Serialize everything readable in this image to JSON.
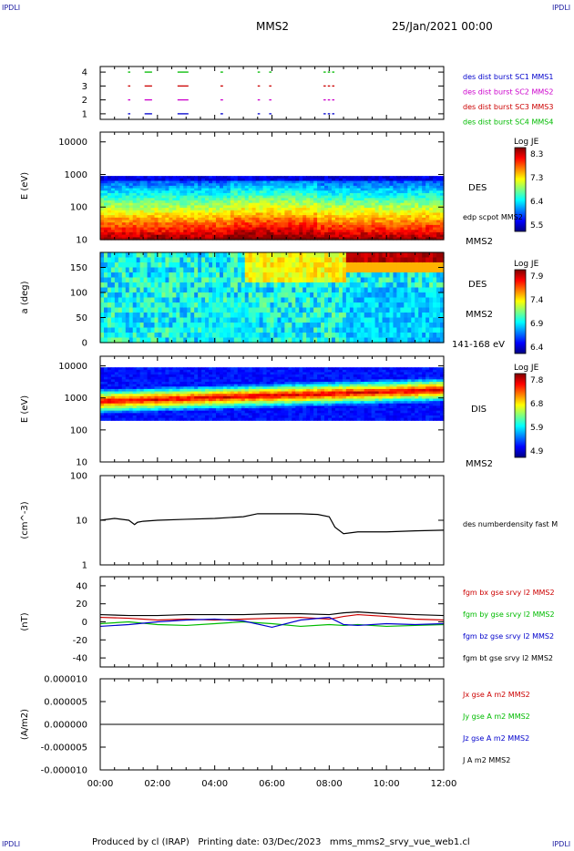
{
  "header": {
    "corner_tl": "IPDLI",
    "corner_tr": "IPDLI",
    "corner_bl": "IPDLI",
    "corner_br": "IPDLI",
    "mission": "MMS2",
    "date": "25/Jan/2021 00:00"
  },
  "footer": {
    "produced_by": "Produced by cl (IRAP)",
    "printing_date": "Printing date: 03/Dec/2023",
    "product": "mms_mms2_srvy_vue_web1.cl"
  },
  "colors": {
    "blue": "#0000cc",
    "magenta": "#cc00cc",
    "red": "#cc0000",
    "green": "#00bb00",
    "black": "#000000",
    "jet_low": "#0000a0",
    "jet_high": "#a00000"
  },
  "chart_data": [
    {
      "id": "burst",
      "type": "scatter",
      "ylim": [
        0.6,
        4.4
      ],
      "yticks": [
        "1",
        "2",
        "3",
        "4"
      ],
      "series": [
        {
          "name": "des dist burst SC1 MMS1",
          "y": 1,
          "color": "#0000cc"
        },
        {
          "name": "des dist burst SC2 MMS2",
          "y": 2,
          "color": "#cc00cc"
        },
        {
          "name": "des dist burst SC3 MMS3",
          "y": 3,
          "color": "#cc0000"
        },
        {
          "name": "des dist burst SC4 MMS4",
          "y": 4,
          "color": "#00bb00"
        }
      ],
      "intervals_hours": [
        [
          0.97,
          1.02
        ],
        [
          1.55,
          1.78
        ],
        [
          2.7,
          3.05
        ],
        [
          4.2,
          4.26
        ],
        [
          5.5,
          5.55
        ],
        [
          5.9,
          5.95
        ],
        [
          7.8,
          7.85
        ],
        [
          7.95,
          8.0
        ],
        [
          8.1,
          8.15
        ]
      ]
    },
    {
      "id": "des_energy",
      "type": "heatmap",
      "ylabel": "E (eV)",
      "yscale": "log",
      "yticks": [
        "10",
        "100",
        "1000",
        "10000"
      ],
      "label_right": "DES",
      "label_right2": "MMS2",
      "overlay": "edp scpot MMS2",
      "colorbar": {
        "title": "Log JE",
        "ticks": [
          "8.3",
          "7.3",
          "6.4",
          "5.5"
        ]
      }
    },
    {
      "id": "des_pitch",
      "type": "heatmap",
      "ylabel": "a (deg)",
      "ylim": [
        0,
        180
      ],
      "yticks": [
        "0",
        "50",
        "100",
        "150"
      ],
      "label_right": "DES",
      "label_right2": "MMS2",
      "label_bottom": "141-168 eV",
      "colorbar": {
        "title": "Log JE",
        "ticks": [
          "7.9",
          "7.4",
          "6.9",
          "6.4"
        ]
      }
    },
    {
      "id": "dis_energy",
      "type": "heatmap",
      "ylabel": "E (eV)",
      "yscale": "log",
      "yticks": [
        "10",
        "100",
        "1000",
        "10000"
      ],
      "label_right": "DIS",
      "label_right2": "MMS2",
      "colorbar": {
        "title": "Log JE",
        "ticks": [
          "7.8",
          "6.8",
          "5.9",
          "4.9"
        ]
      }
    },
    {
      "id": "density",
      "type": "line",
      "ylabel": "(cm^-3)",
      "yscale": "log",
      "ylim": [
        1,
        100
      ],
      "yticks": [
        "1",
        "10",
        "100"
      ],
      "series": [
        {
          "name": "des numberdensity fast M",
          "color": "#000000"
        }
      ],
      "x": [
        0,
        0.5,
        1,
        1.2,
        1.3,
        1.5,
        2,
        3,
        4,
        5,
        5.5,
        6,
        7,
        7.6,
        8,
        8.2,
        8.5,
        9,
        10,
        11,
        12
      ],
      "y": [
        10,
        11,
        10,
        8,
        9,
        9.5,
        10,
        10.5,
        11,
        12,
        14,
        14,
        14,
        13.5,
        12,
        7,
        5,
        5.5,
        5.5,
        5.8,
        6
      ]
    },
    {
      "id": "fgm",
      "type": "line",
      "ylabel": "(nT)",
      "ylim": [
        -50,
        50
      ],
      "yticks": [
        "-40",
        "-20",
        "0",
        "20",
        "40"
      ],
      "x": [
        0,
        1,
        2,
        3,
        4,
        5,
        6,
        7,
        8,
        8.5,
        9,
        10,
        11,
        12
      ],
      "series": [
        {
          "name": "fgm bx gse srvy l2 MMS2",
          "color": "#cc0000",
          "y": [
            5,
            4,
            2,
            3,
            2,
            3,
            4,
            5,
            3,
            6,
            8,
            6,
            3,
            2
          ]
        },
        {
          "name": "fgm by gse srvy l2 MMS2",
          "color": "#00bb00",
          "y": [
            -2,
            0,
            -3,
            -4,
            -2,
            0,
            -2,
            -5,
            -3,
            -4,
            -3,
            -5,
            -4,
            -3
          ]
        },
        {
          "name": "fgm bz gse srvy l2 MMS2",
          "color": "#0000cc",
          "y": [
            -5,
            -3,
            0,
            2,
            3,
            1,
            -6,
            2,
            5,
            -3,
            -4,
            -2,
            -3,
            -2
          ]
        },
        {
          "name": "fgm bt gse srvy l2 MMS2",
          "color": "#000000",
          "y": [
            8,
            7,
            7,
            8,
            8,
            8,
            9,
            9,
            8,
            10,
            11,
            9,
            8,
            7
          ]
        }
      ]
    },
    {
      "id": "current",
      "type": "line",
      "ylabel": "(A/m2)",
      "ylim": [
        -1e-05,
        1e-05
      ],
      "yticks": [
        "-0.000010",
        "-0.000005",
        "0.000000",
        "0.000005",
        "0.000010"
      ],
      "x": [
        0,
        12
      ],
      "series": [
        {
          "name": "Jx gse A m2 MMS2",
          "color": "#cc0000",
          "y": [
            0,
            0
          ]
        },
        {
          "name": "Jy gse A m2 MMS2",
          "color": "#00bb00",
          "y": [
            0,
            0
          ]
        },
        {
          "name": "Jz gse A m2 MMS2",
          "color": "#0000cc",
          "y": [
            0,
            0
          ]
        },
        {
          "name": "J A m2 MMS2",
          "color": "#000000",
          "y": [
            0,
            0
          ]
        }
      ]
    }
  ],
  "time_axis": {
    "range_hours": [
      0,
      12
    ],
    "ticks": [
      "00:00",
      "02:00",
      "04:00",
      "06:00",
      "08:00",
      "10:00",
      "12:00"
    ]
  }
}
